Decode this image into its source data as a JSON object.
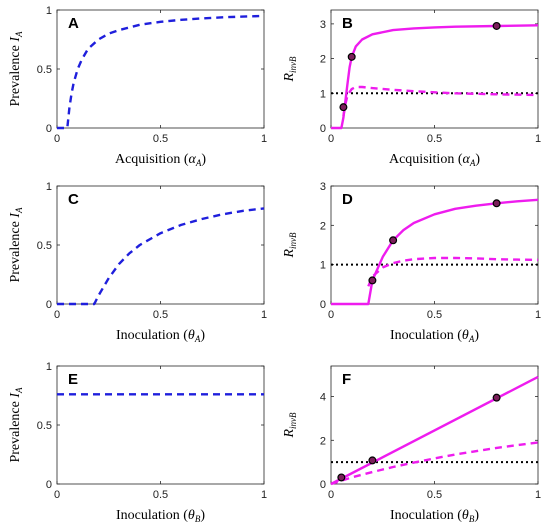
{
  "colors": {
    "prevalence": "#1f1fdc",
    "invasion": "#ee1cee",
    "threshold": "#000000",
    "marker_face": "#7a1f5a"
  },
  "chart_data": [
    {
      "id": "A",
      "type": "line",
      "letter": "A",
      "xlabel": {
        "text": "Acquisition (",
        "sym": "α",
        "sub": "A",
        "close": ")"
      },
      "ylabel": {
        "text": "Prevalence ",
        "sym": "I",
        "sub": "A"
      },
      "xlim": [
        0,
        1
      ],
      "ylim": [
        0,
        1
      ],
      "xticks": [
        0,
        0.5,
        1
      ],
      "xtick_labels": [
        "0",
        "0.5",
        "1"
      ],
      "yticks": [
        0,
        0.5,
        1
      ],
      "ytick_labels": [
        "0",
        "0.5",
        "1"
      ],
      "series": [
        {
          "style": "dashed",
          "color_key": "prevalence",
          "x": [
            0,
            0.05,
            0.06,
            0.07,
            0.08,
            0.1,
            0.12,
            0.15,
            0.2,
            0.25,
            0.3,
            0.4,
            0.5,
            0.6,
            0.7,
            0.8,
            0.9,
            1.0
          ],
          "y": [
            0,
            0,
            0.17,
            0.29,
            0.38,
            0.5,
            0.58,
            0.67,
            0.75,
            0.8,
            0.83,
            0.875,
            0.9,
            0.917,
            0.929,
            0.938,
            0.944,
            0.95
          ]
        }
      ]
    },
    {
      "id": "B",
      "type": "line",
      "letter": "B",
      "xlabel": {
        "text": "Acquisition (",
        "sym": "α",
        "sub": "A",
        "close": ")"
      },
      "ylabel": {
        "text": "",
        "sym": "R",
        "sub": "invB"
      },
      "xlim": [
        0,
        1
      ],
      "ylim": [
        0,
        3.4
      ],
      "xticks": [
        0,
        0.5,
        1
      ],
      "xtick_labels": [
        "0",
        "0.5",
        "1"
      ],
      "yticks": [
        0,
        1,
        2,
        3
      ],
      "ytick_labels": [
        "0",
        "1",
        "2",
        "3"
      ],
      "hline": 1,
      "series": [
        {
          "style": "solid",
          "color_key": "invasion",
          "x": [
            0,
            0.05,
            0.06,
            0.07,
            0.08,
            0.09,
            0.1,
            0.12,
            0.15,
            0.2,
            0.3,
            0.4,
            0.5,
            0.6,
            0.8,
            1.0
          ],
          "y": [
            0,
            0,
            0.3,
            0.8,
            1.3,
            1.75,
            2.05,
            2.35,
            2.55,
            2.7,
            2.82,
            2.87,
            2.9,
            2.92,
            2.94,
            2.96
          ]
        },
        {
          "style": "dashed",
          "color_key": "invasion",
          "x": [
            0.06,
            0.07,
            0.08,
            0.1,
            0.12,
            0.15,
            0.2,
            0.3,
            0.4,
            0.5,
            0.6,
            0.8,
            1.0
          ],
          "y": [
            0.35,
            0.7,
            0.95,
            1.12,
            1.18,
            1.18,
            1.15,
            1.1,
            1.06,
            1.03,
            1.0,
            0.97,
            0.95
          ]
        }
      ],
      "markers": {
        "x": [
          0.06,
          0.1,
          0.8
        ],
        "y": [
          0.6,
          2.05,
          2.94
        ]
      }
    },
    {
      "id": "C",
      "type": "line",
      "letter": "C",
      "xlabel": {
        "text": "Inoculation (",
        "sym": "θ",
        "sub": "A",
        "close": ")"
      },
      "ylabel": {
        "text": "Prevalence ",
        "sym": "I",
        "sub": "A"
      },
      "xlim": [
        0,
        1
      ],
      "ylim": [
        0,
        1
      ],
      "xticks": [
        0,
        0.5,
        1
      ],
      "xtick_labels": [
        "0",
        "0.5",
        "1"
      ],
      "yticks": [
        0,
        0.5,
        1
      ],
      "ytick_labels": [
        "0",
        "0.5",
        "1"
      ],
      "series": [
        {
          "style": "dashed",
          "color_key": "prevalence",
          "x": [
            0,
            0.18,
            0.2,
            0.25,
            0.3,
            0.35,
            0.4,
            0.5,
            0.6,
            0.7,
            0.8,
            0.9,
            1.0
          ],
          "y": [
            0,
            0,
            0.07,
            0.22,
            0.34,
            0.43,
            0.5,
            0.6,
            0.67,
            0.72,
            0.76,
            0.79,
            0.81
          ]
        }
      ]
    },
    {
      "id": "D",
      "type": "line",
      "letter": "D",
      "xlabel": {
        "text": "Inoculation (",
        "sym": "θ",
        "sub": "A",
        "close": ")"
      },
      "ylabel": {
        "text": "",
        "sym": "R",
        "sub": "invB"
      },
      "xlim": [
        0,
        1
      ],
      "ylim": [
        0,
        3
      ],
      "xticks": [
        0,
        0.5,
        1
      ],
      "xtick_labels": [
        "0",
        "0.5",
        "1"
      ],
      "yticks": [
        0,
        1,
        2,
        3
      ],
      "ytick_labels": [
        "0",
        "1",
        "2",
        "3"
      ],
      "hline": 1,
      "series": [
        {
          "style": "solid",
          "color_key": "invasion",
          "x": [
            0,
            0.18,
            0.2,
            0.25,
            0.3,
            0.35,
            0.4,
            0.5,
            0.6,
            0.7,
            0.8,
            0.9,
            1.0
          ],
          "y": [
            0,
            0,
            0.6,
            1.2,
            1.62,
            1.88,
            2.06,
            2.28,
            2.42,
            2.5,
            2.56,
            2.61,
            2.65
          ]
        },
        {
          "style": "dashed",
          "color_key": "invasion",
          "x": [
            0.18,
            0.2,
            0.25,
            0.3,
            0.35,
            0.4,
            0.5,
            0.6,
            0.7,
            0.8,
            0.9,
            1.0
          ],
          "y": [
            0.45,
            0.7,
            0.93,
            1.04,
            1.1,
            1.14,
            1.17,
            1.17,
            1.16,
            1.14,
            1.13,
            1.12
          ]
        }
      ],
      "markers": {
        "x": [
          0.2,
          0.3,
          0.8
        ],
        "y": [
          0.6,
          1.62,
          2.56
        ]
      }
    },
    {
      "id": "E",
      "type": "line",
      "letter": "E",
      "xlabel": {
        "text": "Inoculation (",
        "sym": "θ",
        "sub": "B",
        "close": ")"
      },
      "ylabel": {
        "text": "Prevalence ",
        "sym": "I",
        "sub": "A"
      },
      "xlim": [
        0,
        1
      ],
      "ylim": [
        0,
        1
      ],
      "xticks": [
        0,
        0.5,
        1
      ],
      "xtick_labels": [
        "0",
        "0.5",
        "1"
      ],
      "yticks": [
        0,
        0.5,
        1
      ],
      "ytick_labels": [
        "0",
        "0.5",
        "1"
      ],
      "series": [
        {
          "style": "dashed",
          "color_key": "prevalence",
          "x": [
            0,
            1
          ],
          "y": [
            0.76,
            0.76
          ]
        }
      ]
    },
    {
      "id": "F",
      "type": "line",
      "letter": "F",
      "xlabel": {
        "text": "Inoculation (",
        "sym": "θ",
        "sub": "B",
        "close": ")"
      },
      "ylabel": {
        "text": "",
        "sym": "R",
        "sub": "invB"
      },
      "xlim": [
        0,
        1
      ],
      "ylim": [
        0,
        5.4
      ],
      "xticks": [
        0,
        0.5,
        1
      ],
      "xtick_labels": [
        "0",
        "0.5",
        "1"
      ],
      "yticks": [
        0,
        2,
        4
      ],
      "ytick_labels": [
        "0",
        "2",
        "4"
      ],
      "hline": 1,
      "series": [
        {
          "style": "solid",
          "color_key": "invasion",
          "x": [
            0,
            1
          ],
          "y": [
            0,
            4.9
          ]
        },
        {
          "style": "dashed",
          "color_key": "invasion",
          "x": [
            0,
            0.1,
            0.2,
            0.3,
            0.4,
            0.5,
            0.6,
            0.7,
            0.8,
            0.9,
            1.0
          ],
          "y": [
            0,
            0.3,
            0.55,
            0.78,
            0.98,
            1.17,
            1.35,
            1.5,
            1.65,
            1.78,
            1.9
          ]
        }
      ],
      "markers": {
        "x": [
          0.05,
          0.2,
          0.8
        ],
        "y": [
          0.3,
          1.08,
          3.95
        ]
      }
    }
  ]
}
